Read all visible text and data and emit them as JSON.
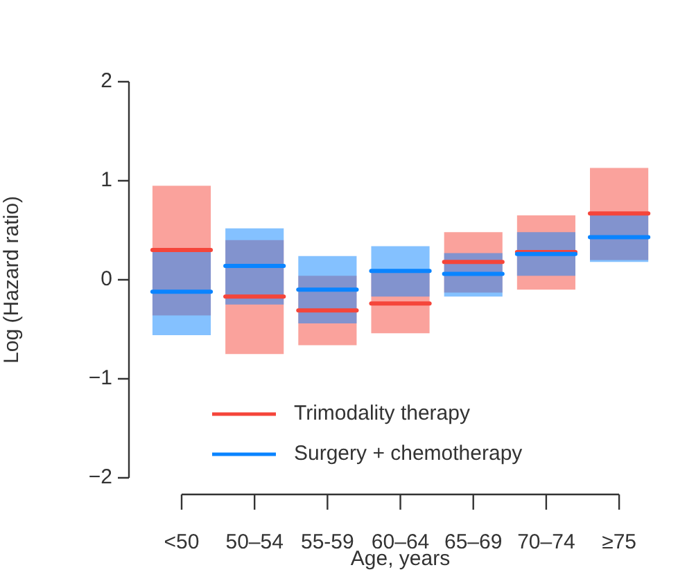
{
  "chart_data": {
    "type": "box",
    "xlabel": "Age, years",
    "ylabel": "Log (Hazard ratio)",
    "categories": [
      "<50",
      "50–54",
      "55-59",
      "60–64",
      "65–69",
      "70–74",
      "≥75"
    ],
    "ylim": [
      -2,
      2
    ],
    "yticks": [
      -2,
      -1,
      0,
      1,
      2
    ],
    "legend": "bottom left",
    "series": [
      {
        "name": "Trimodality therapy",
        "color": "#f5453a",
        "boxes": [
          {
            "low": -0.36,
            "q1": -0.36,
            "median": 0.3,
            "q3": 0.95,
            "high": 0.95
          },
          {
            "low": -0.75,
            "q1": -0.75,
            "median": -0.17,
            "q3": 0.4,
            "high": 0.4
          },
          {
            "low": -0.66,
            "q1": -0.66,
            "median": -0.31,
            "q3": 0.04,
            "high": 0.04
          },
          {
            "low": -0.54,
            "q1": -0.54,
            "median": -0.24,
            "q3": 0.09,
            "high": 0.09
          },
          {
            "low": -0.13,
            "q1": -0.13,
            "median": 0.18,
            "q3": 0.48,
            "high": 0.48
          },
          {
            "low": -0.1,
            "q1": -0.1,
            "median": 0.28,
            "q3": 0.65,
            "high": 0.65
          },
          {
            "low": 0.2,
            "q1": 0.2,
            "median": 0.67,
            "q3": 1.13,
            "high": 1.13
          }
        ]
      },
      {
        "name": "Surgery + chemotherapy",
        "color": "#0a84ff",
        "boxes": [
          {
            "low": -0.56,
            "q1": -0.56,
            "median": -0.12,
            "q3": 0.29,
            "high": 0.29
          },
          {
            "low": -0.25,
            "q1": -0.25,
            "median": 0.14,
            "q3": 0.52,
            "high": 0.52
          },
          {
            "low": -0.44,
            "q1": -0.44,
            "median": -0.1,
            "q3": 0.24,
            "high": 0.24
          },
          {
            "low": -0.17,
            "q1": -0.17,
            "median": 0.09,
            "q3": 0.34,
            "high": 0.34
          },
          {
            "low": -0.17,
            "q1": -0.17,
            "median": 0.06,
            "q3": 0.27,
            "high": 0.27
          },
          {
            "low": 0.04,
            "q1": 0.04,
            "median": 0.26,
            "q3": 0.48,
            "high": 0.48
          },
          {
            "low": 0.18,
            "q1": 0.18,
            "median": 0.43,
            "q3": 0.66,
            "high": 0.66
          }
        ]
      }
    ]
  }
}
